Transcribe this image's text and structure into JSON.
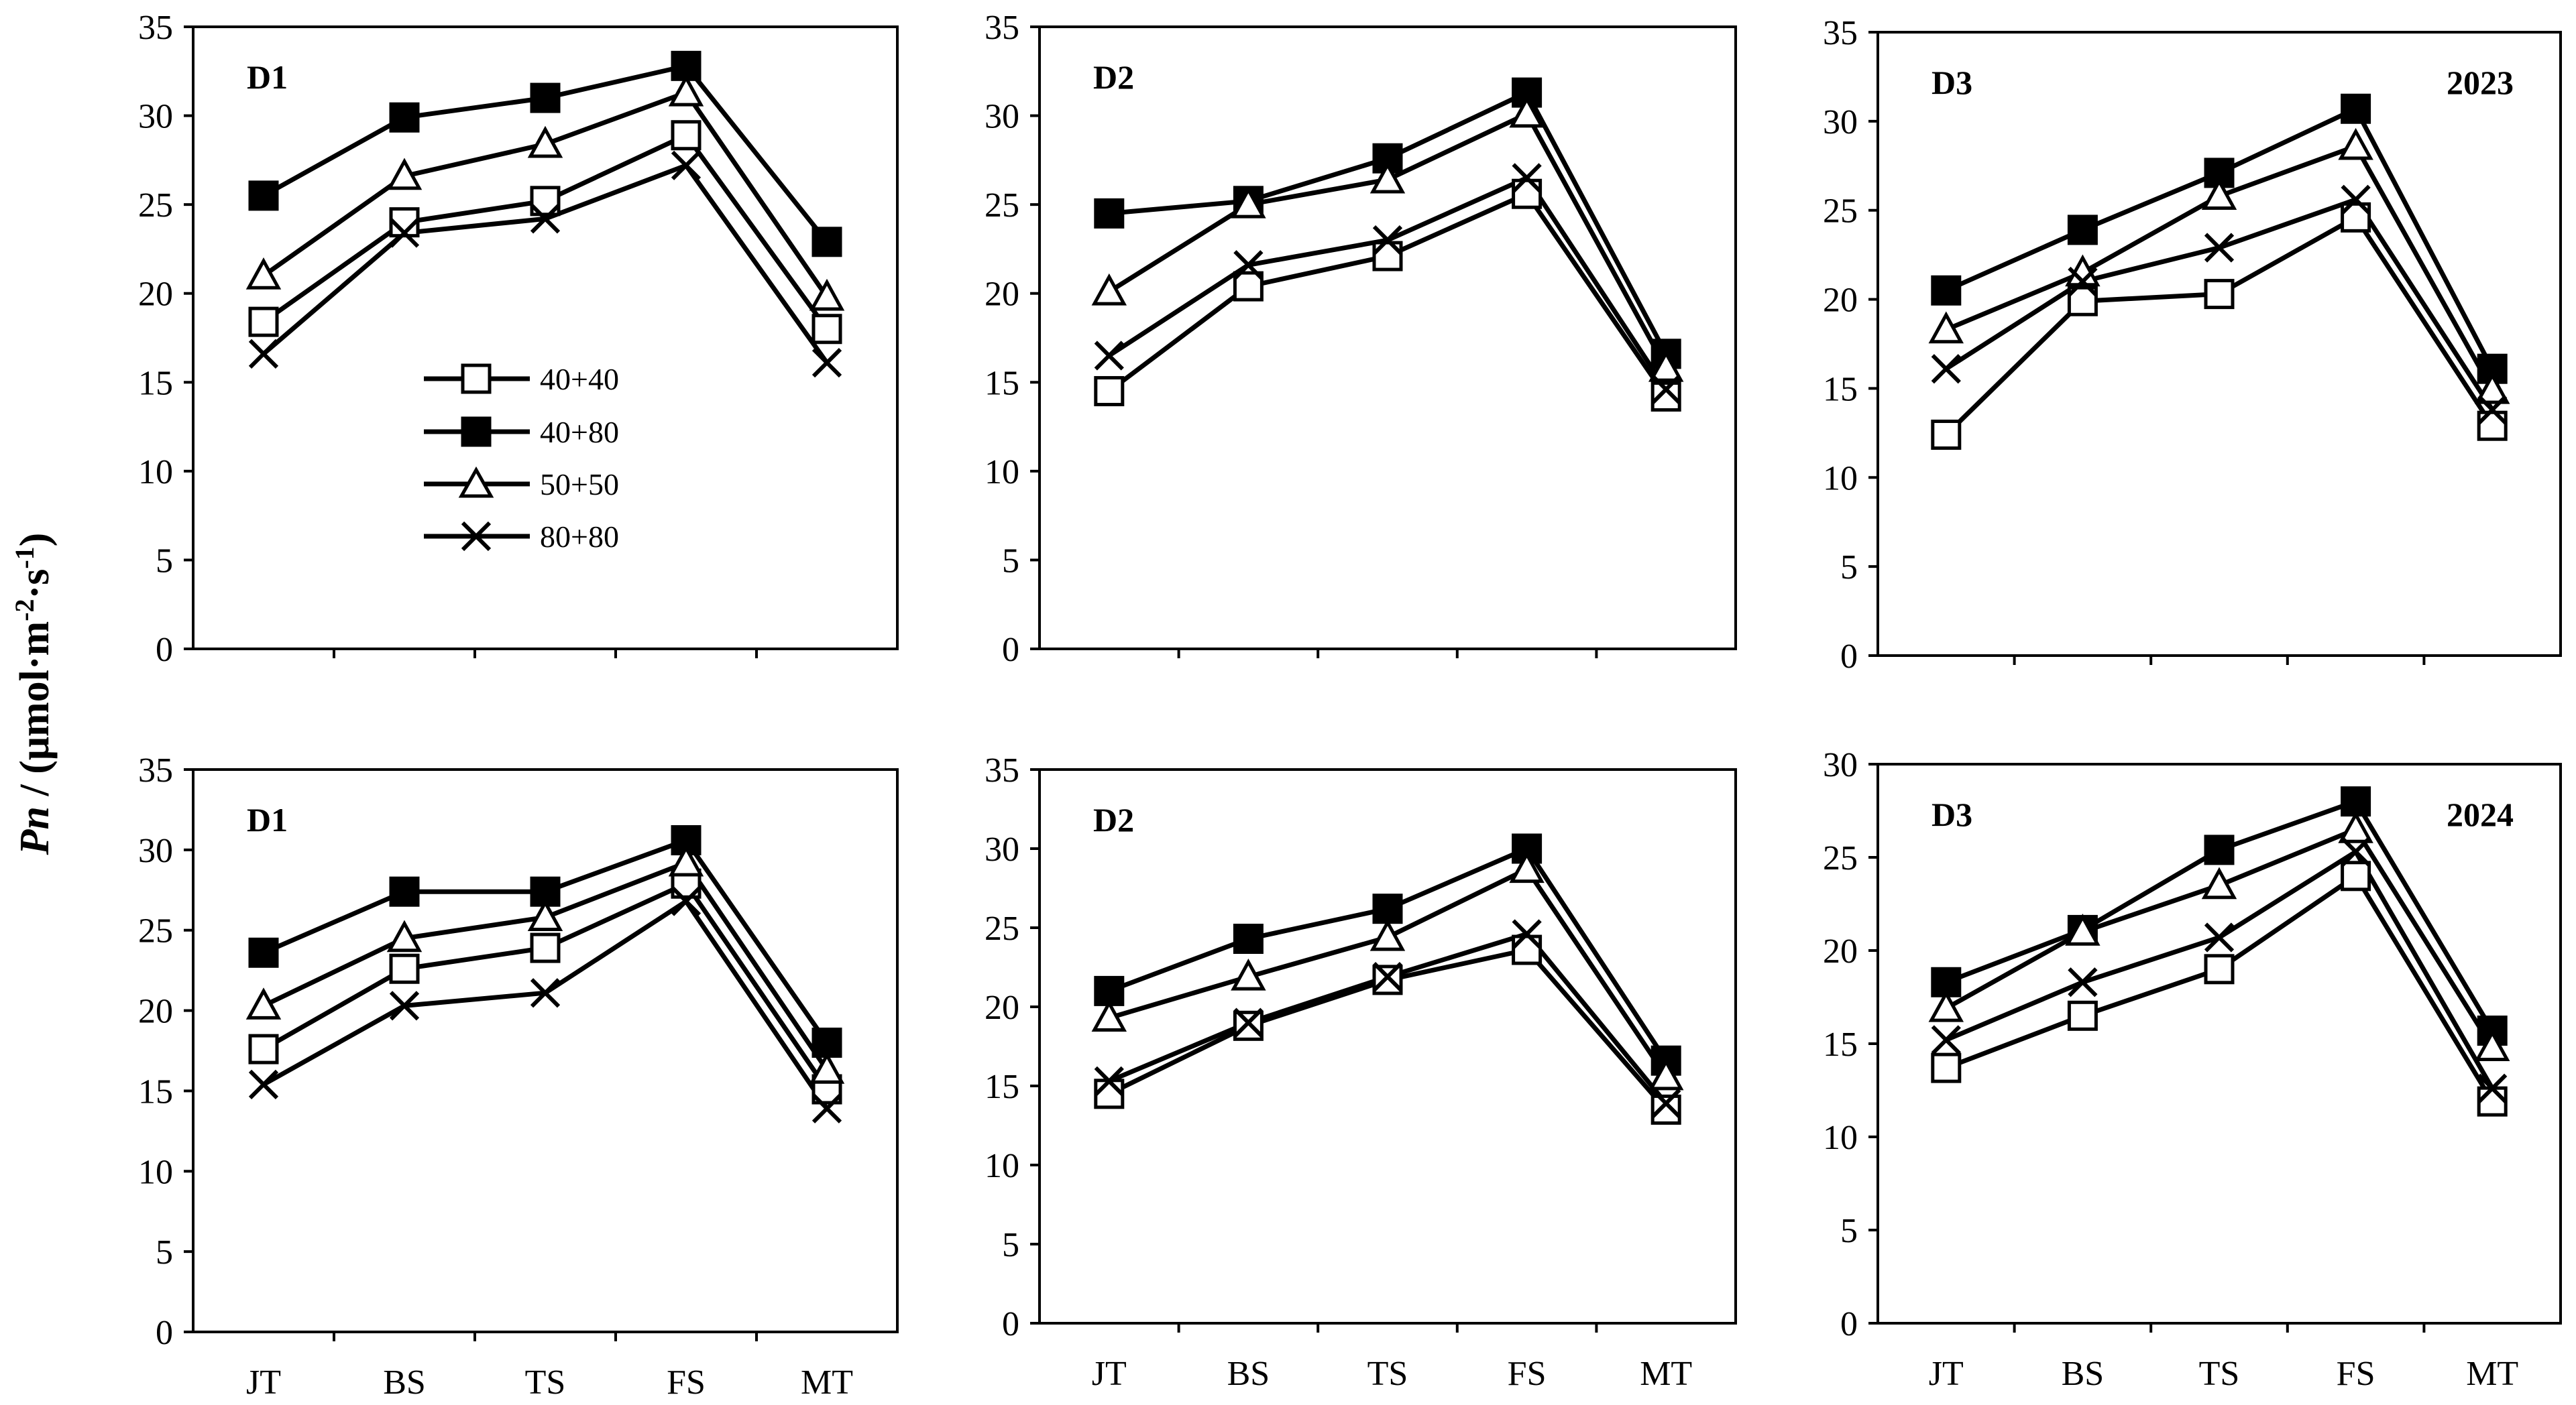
{
  "figure": {
    "ylabel": {
      "italic": "Pn",
      "rest": " / (μmol·m",
      "sup1": "-2",
      "mid": "·s",
      "sup2": "-1",
      "end": ")"
    }
  },
  "legend": [
    "40+40",
    "40+80",
    "50+50",
    "80+80"
  ],
  "colors": {
    "line": "#000000",
    "marker_fill_solid": "#000000",
    "marker_fill_open": "#ffffff",
    "axis": "#000000"
  },
  "chart_data": [
    {
      "type": "line",
      "title": "D1",
      "year": "",
      "categories": [
        "JT",
        "BS",
        "TS",
        "FS",
        "MT"
      ],
      "show_xlabels": false,
      "ylim": [
        0,
        35
      ],
      "yticks": [
        0,
        5,
        10,
        15,
        20,
        25,
        30,
        35
      ],
      "series": [
        {
          "name": "40+40",
          "marker": "square-open",
          "values": [
            18.4,
            24.0,
            25.2,
            28.9,
            18.0
          ]
        },
        {
          "name": "40+80",
          "marker": "square-filled",
          "values": [
            25.5,
            29.9,
            31.0,
            32.8,
            22.9
          ]
        },
        {
          "name": "50+50",
          "marker": "triangle-open",
          "values": [
            21.0,
            26.6,
            28.4,
            31.3,
            19.8
          ]
        },
        {
          "name": "80+80",
          "marker": "x",
          "values": [
            16.6,
            23.4,
            24.2,
            27.2,
            16.1
          ]
        }
      ]
    },
    {
      "type": "line",
      "title": "D2",
      "year": "",
      "categories": [
        "JT",
        "BS",
        "TS",
        "FS",
        "MT"
      ],
      "show_xlabels": false,
      "ylim": [
        0,
        35
      ],
      "yticks": [
        0,
        5,
        10,
        15,
        20,
        25,
        30,
        35
      ],
      "series": [
        {
          "name": "40+40",
          "marker": "square-open",
          "values": [
            14.5,
            20.4,
            22.1,
            25.6,
            14.2
          ]
        },
        {
          "name": "40+80",
          "marker": "square-filled",
          "values": [
            24.5,
            25.2,
            27.6,
            31.3,
            16.6
          ]
        },
        {
          "name": "50+50",
          "marker": "triangle-open",
          "values": [
            20.1,
            25.0,
            26.4,
            30.1,
            15.8
          ]
        },
        {
          "name": "80+80",
          "marker": "x",
          "values": [
            16.5,
            21.6,
            23.0,
            26.5,
            14.6
          ]
        }
      ]
    },
    {
      "type": "line",
      "title": "D3",
      "year": "2023",
      "categories": [
        "JT",
        "BS",
        "TS",
        "FS",
        "MT"
      ],
      "show_xlabels": false,
      "ylim": [
        0,
        35
      ],
      "yticks": [
        0,
        5,
        10,
        15,
        20,
        25,
        30,
        35
      ],
      "series": [
        {
          "name": "40+40",
          "marker": "square-open",
          "values": [
            12.4,
            19.9,
            20.3,
            24.6,
            12.9
          ]
        },
        {
          "name": "40+80",
          "marker": "square-filled",
          "values": [
            20.5,
            23.9,
            27.1,
            30.7,
            16.1
          ]
        },
        {
          "name": "50+50",
          "marker": "triangle-open",
          "values": [
            18.3,
            21.5,
            25.8,
            28.6,
            14.9
          ]
        },
        {
          "name": "80+80",
          "marker": "x",
          "values": [
            16.1,
            21.0,
            22.9,
            25.6,
            13.8
          ]
        }
      ]
    },
    {
      "type": "line",
      "title": "D1",
      "year": "",
      "categories": [
        "JT",
        "BS",
        "TS",
        "FS",
        "MT"
      ],
      "show_xlabels": true,
      "ylim": [
        0,
        35
      ],
      "yticks": [
        0,
        5,
        10,
        15,
        20,
        25,
        30,
        35
      ],
      "series": [
        {
          "name": "40+40",
          "marker": "square-open",
          "values": [
            17.6,
            22.6,
            23.9,
            27.9,
            15.1
          ]
        },
        {
          "name": "40+80",
          "marker": "square-filled",
          "values": [
            23.6,
            27.4,
            27.4,
            30.6,
            18.0
          ]
        },
        {
          "name": "50+50",
          "marker": "triangle-open",
          "values": [
            20.3,
            24.5,
            25.8,
            29.2,
            16.3
          ]
        },
        {
          "name": "80+80",
          "marker": "x",
          "values": [
            15.4,
            20.3,
            21.1,
            26.8,
            13.9
          ]
        }
      ]
    },
    {
      "type": "line",
      "title": "D2",
      "year": "",
      "categories": [
        "JT",
        "BS",
        "TS",
        "FS",
        "MT"
      ],
      "show_xlabels": true,
      "ylim": [
        0,
        35
      ],
      "yticks": [
        0,
        5,
        10,
        15,
        20,
        25,
        30,
        35
      ],
      "series": [
        {
          "name": "40+40",
          "marker": "square-open",
          "values": [
            14.5,
            18.8,
            21.7,
            23.6,
            13.5
          ]
        },
        {
          "name": "40+80",
          "marker": "square-filled",
          "values": [
            21.0,
            24.3,
            26.2,
            30.0,
            16.6
          ]
        },
        {
          "name": "50+50",
          "marker": "triangle-open",
          "values": [
            19.3,
            21.9,
            24.4,
            28.7,
            15.6
          ]
        },
        {
          "name": "80+80",
          "marker": "x",
          "values": [
            15.3,
            19.0,
            21.9,
            24.6,
            13.9
          ]
        }
      ]
    },
    {
      "type": "line",
      "title": "D3",
      "year": "2024",
      "categories": [
        "JT",
        "BS",
        "TS",
        "FS",
        "MT"
      ],
      "show_xlabels": true,
      "ylim": [
        0,
        30
      ],
      "yticks": [
        0,
        5,
        10,
        15,
        20,
        25,
        30
      ],
      "series": [
        {
          "name": "40+40",
          "marker": "square-open",
          "values": [
            13.7,
            16.5,
            19.0,
            24.0,
            11.9
          ]
        },
        {
          "name": "40+80",
          "marker": "square-filled",
          "values": [
            18.3,
            21.1,
            25.4,
            28.0,
            15.7
          ]
        },
        {
          "name": "50+50",
          "marker": "triangle-open",
          "values": [
            16.9,
            21.0,
            23.5,
            26.5,
            14.8
          ]
        },
        {
          "name": "80+80",
          "marker": "x",
          "values": [
            15.2,
            18.3,
            20.7,
            25.3,
            12.6
          ]
        }
      ]
    }
  ]
}
